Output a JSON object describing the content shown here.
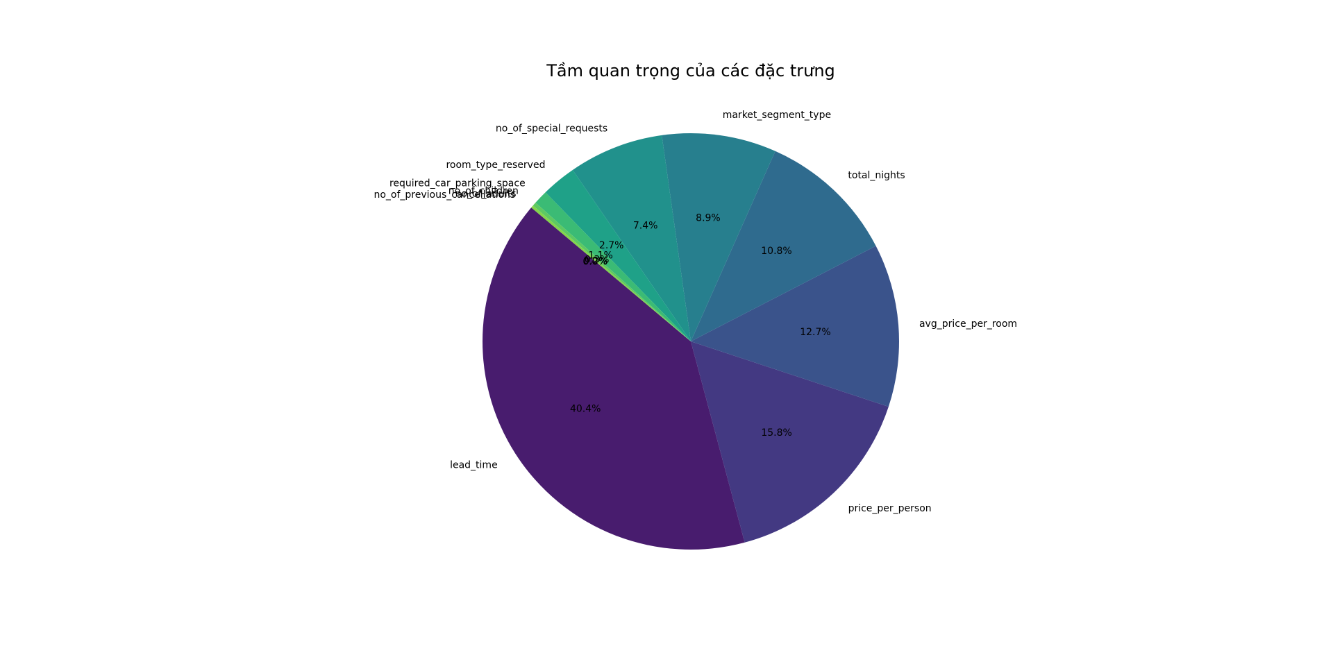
{
  "chart_data": {
    "type": "pie",
    "title": "Tầm quan trọng của các đặc trưng",
    "slices": [
      {
        "label": "lead_time",
        "value": 40.4,
        "pct_label": "40.4%",
        "color": "#481c6e"
      },
      {
        "label": "price_per_person",
        "value": 15.8,
        "pct_label": "15.8%",
        "color": "#433982"
      },
      {
        "label": "avg_price_per_room",
        "value": 12.7,
        "pct_label": "12.7%",
        "color": "#3a538b"
      },
      {
        "label": "total_nights",
        "value": 10.8,
        "pct_label": "10.8%",
        "color": "#2f6b8e"
      },
      {
        "label": "market_segment_type",
        "value": 8.9,
        "pct_label": "8.9%",
        "color": "#277f8e"
      },
      {
        "label": "no_of_special_requests",
        "value": 7.4,
        "pct_label": "7.4%",
        "color": "#21918c"
      },
      {
        "label": "room_type_reserved",
        "value": 2.7,
        "pct_label": "2.7%",
        "color": "#1fa188"
      },
      {
        "label": "required_car_parking_space",
        "value": 1.1,
        "pct_label": "1.1%",
        "color": "#3bbb75"
      },
      {
        "label": "no_of_children",
        "value": 0.3,
        "pct_label": "0.3%",
        "color": "#5ec962"
      },
      {
        "label": "no_of_adults",
        "value": 0.2,
        "pct_label": "0.2%",
        "color": "#84d44b"
      },
      {
        "label": "no_of_previous_cancellations",
        "value": 0.0,
        "pct_label": "0.0%",
        "color": "#c0df25"
      }
    ],
    "start_angle_deg": 140,
    "direction": "counterclockwise",
    "legend": "none"
  }
}
